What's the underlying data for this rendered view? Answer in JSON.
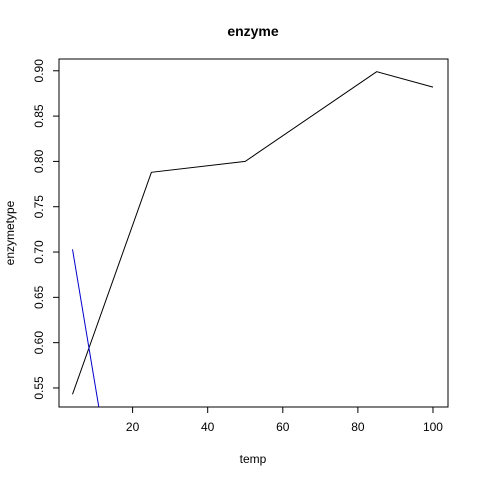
{
  "chart_data": {
    "type": "line",
    "title": "enzyme",
    "xlabel": "temp",
    "ylabel": "enzymetype",
    "xlim": [
      0.4,
      104
    ],
    "ylim": [
      0.529,
      0.913
    ],
    "x_ticks": [
      "20",
      "40",
      "60",
      "80",
      "100"
    ],
    "x_tick_values": [
      20,
      40,
      60,
      80,
      100
    ],
    "y_ticks": [
      "0.55",
      "0.60",
      "0.65",
      "0.70",
      "0.75",
      "0.80",
      "0.85",
      "0.90"
    ],
    "y_tick_values": [
      0.55,
      0.6,
      0.65,
      0.7,
      0.75,
      0.8,
      0.85,
      0.9
    ],
    "grid": false,
    "legend": "none",
    "series": [
      {
        "color": "#000000",
        "x": [
          4,
          25,
          50,
          85,
          100
        ],
        "y": [
          0.543,
          0.788,
          0.8,
          0.899,
          0.882
        ]
      },
      {
        "color": "#0000cc",
        "x": [
          4,
          11
        ],
        "y": [
          0.703,
          0.529
        ]
      }
    ]
  }
}
